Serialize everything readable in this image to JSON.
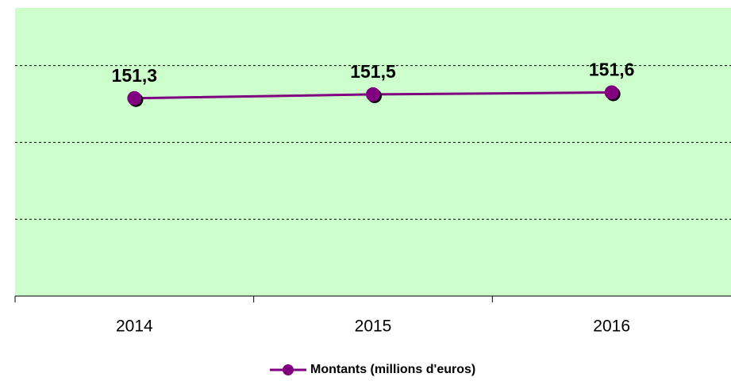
{
  "chart_data": {
    "type": "line",
    "categories": [
      "2014",
      "2015",
      "2016"
    ],
    "series": [
      {
        "name": "Montants (millions d'euros)",
        "color": "#800080",
        "values": [
          151.3,
          151.5,
          151.6
        ],
        "value_labels": [
          "151,3",
          "151,5",
          "151,6"
        ]
      }
    ],
    "ylim": [
      141,
      156
    ],
    "yticks": [
      145,
      149,
      153
    ],
    "grid": true,
    "background": "#ccffcc",
    "legend": "bottom"
  }
}
